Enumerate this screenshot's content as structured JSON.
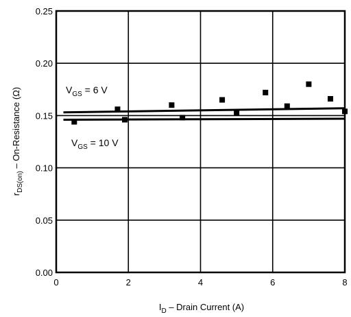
{
  "chart_data": {
    "type": "line",
    "title": "",
    "xlabel_main": "I",
    "xlabel_sub": "D",
    "xlabel_rest": " – Drain Current (A)",
    "ylabel_main": "r",
    "ylabel_sub": "DS(on)",
    "ylabel_rest": " – On-Resistance (Ω)",
    "xlim": [
      0,
      8
    ],
    "ylim": [
      0,
      0.25
    ],
    "x_ticks": [
      "0",
      "2",
      "4",
      "6",
      "8"
    ],
    "y_ticks": [
      "0.00",
      "0.05",
      "0.10",
      "0.15",
      "0.20",
      "0.25"
    ],
    "grid": true,
    "series": [
      {
        "name_main": "V",
        "name_sub": "GS",
        "name_rest": " = 6 V",
        "style": "line",
        "x": [
          0.2,
          8.0
        ],
        "y": [
          0.153,
          0.157
        ]
      },
      {
        "name_main": "V",
        "name_sub": "GS",
        "name_rest": " = 10 V",
        "style": "line",
        "x": [
          0.2,
          8.0
        ],
        "y": [
          0.146,
          0.147
        ]
      },
      {
        "name": "",
        "style": "markers",
        "x": [
          0.5,
          1.7,
          1.9,
          3.2,
          3.5,
          4.6,
          5.0,
          5.8,
          6.4,
          7.0,
          7.6,
          8.0
        ],
        "y": [
          0.144,
          0.156,
          0.146,
          0.16,
          0.148,
          0.165,
          0.153,
          0.172,
          0.159,
          0.18,
          0.166,
          0.154
        ]
      }
    ]
  }
}
